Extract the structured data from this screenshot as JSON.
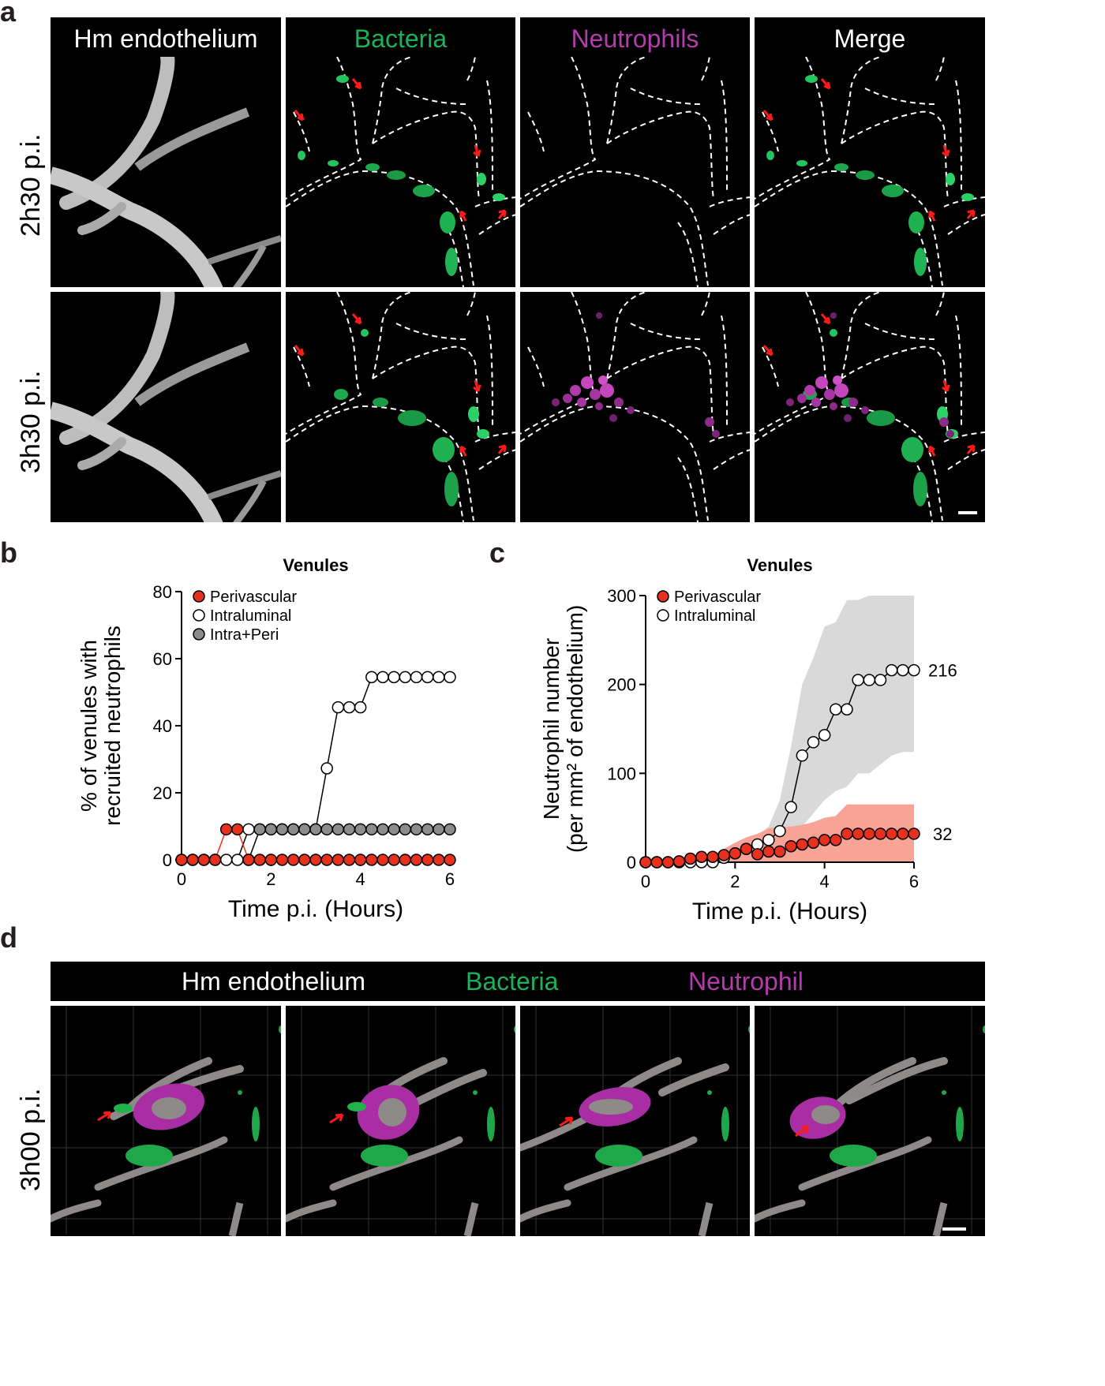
{
  "panels": {
    "a": "a",
    "b": "b",
    "c": "c",
    "d": "d"
  },
  "panel_a": {
    "columns": [
      "Hm endothelium",
      "Bacteria",
      "Neutrophils",
      "Merge"
    ],
    "rows": [
      "2h30 p.i.",
      "3h30 p.i."
    ]
  },
  "panel_d": {
    "header": {
      "endothelium": "Hm endothelium",
      "bacteria": "Bacteria",
      "neutrophil": "Neutrophil"
    },
    "row": "3h00 p.i."
  },
  "colors": {
    "bacteria": "#1bb25a",
    "neutrophil": "#b43cac",
    "perivascular": "#e8301f",
    "intra_peri": "#8c8c8c",
    "arrow": "#ff1a1a"
  },
  "chart_data": [
    {
      "panel": "b",
      "type": "line",
      "title": "Venules",
      "xlabel": "Time p.i. (Hours)",
      "ylabel": [
        "% of venules with",
        "recruited neutrophils"
      ],
      "xlim": [
        0,
        6
      ],
      "ylim": [
        0,
        80
      ],
      "xticks": [
        "0",
        "2",
        "4",
        "6"
      ],
      "yticks": [
        "0",
        "20",
        "40",
        "60",
        "80"
      ],
      "legend": [
        "Perivascular",
        "Intraluminal",
        "Intra+Peri"
      ],
      "series": [
        {
          "name": "Intraluminal",
          "x": [
            0,
            0.25,
            0.5,
            0.75,
            1,
            1.25,
            1.5,
            1.75,
            2,
            2.25,
            2.5,
            2.75,
            3,
            3.25,
            3.5,
            3.75,
            4,
            4.25,
            4.5,
            4.75,
            5,
            5.25,
            5.5,
            5.75,
            6
          ],
          "y": [
            0,
            0,
            0,
            0,
            0,
            0,
            9.1,
            9.1,
            9.1,
            9.1,
            9.1,
            9.1,
            9.1,
            27.3,
            45.5,
            45.5,
            45.5,
            54.5,
            54.5,
            54.5,
            54.5,
            54.5,
            54.5,
            54.5,
            54.5
          ]
        },
        {
          "name": "Intra+Peri",
          "x": [
            1.5,
            1.75,
            2,
            2.25,
            2.5,
            2.75,
            3,
            3.25,
            3.5,
            3.75,
            4,
            4.25,
            4.5,
            4.75,
            5,
            5.25,
            5.5,
            5.75,
            6
          ],
          "y": [
            0,
            9.1,
            9.1,
            9.1,
            9.1,
            9.1,
            9.1,
            9.1,
            9.1,
            9.1,
            9.1,
            9.1,
            9.1,
            9.1,
            9.1,
            9.1,
            9.1,
            9.1,
            9.1
          ]
        },
        {
          "name": "Perivascular",
          "x": [
            0,
            0.25,
            0.5,
            0.75,
            1,
            1.25,
            1.5,
            1.75,
            2,
            2.25,
            2.5,
            2.75,
            3,
            3.25,
            3.5,
            3.75,
            4,
            4.25,
            4.5,
            4.75,
            5,
            5.25,
            5.5,
            5.75,
            6
          ],
          "y": [
            0,
            0,
            0,
            0,
            9.1,
            9.1,
            0,
            0,
            0,
            0,
            0,
            0,
            0,
            0,
            0,
            0,
            0,
            0,
            0,
            0,
            0,
            0,
            0,
            0,
            0
          ]
        }
      ]
    },
    {
      "panel": "c",
      "type": "line",
      "title": "Venules",
      "xlabel": "Time p.i. (Hours)",
      "ylabel": [
        "Neutrophil number",
        "(per mm² of endothelium)"
      ],
      "xlim": [
        0,
        6
      ],
      "ylim": [
        0,
        300
      ],
      "xticks": [
        "0",
        "2",
        "4",
        "6"
      ],
      "yticks": [
        "0",
        "100",
        "200",
        "300"
      ],
      "legend": [
        "Perivascular",
        "Intraluminal"
      ],
      "end_labels": {
        "intraluminal": "216",
        "perivascular": "32"
      },
      "series": [
        {
          "name": "Intraluminal",
          "x": [
            0,
            0.25,
            0.5,
            0.75,
            1,
            1.25,
            1.5,
            1.75,
            2,
            2.25,
            2.5,
            2.75,
            3,
            3.25,
            3.5,
            3.75,
            4,
            4.25,
            4.5,
            4.75,
            5,
            5.25,
            5.5,
            5.75,
            6
          ],
          "y": [
            0,
            0,
            0,
            0,
            0,
            0,
            0,
            5,
            10,
            15,
            20,
            25,
            35,
            62,
            120,
            135,
            143,
            172,
            172,
            205,
            205,
            205,
            216,
            216,
            216
          ],
          "band_upper": [
            0,
            0,
            0,
            0,
            0,
            0,
            0,
            5,
            15,
            25,
            30,
            40,
            70,
            130,
            200,
            230,
            265,
            270,
            295,
            295,
            300,
            300,
            300,
            300,
            300
          ],
          "band_lower": [
            0,
            0,
            0,
            0,
            0,
            0,
            0,
            3,
            8,
            10,
            10,
            15,
            20,
            30,
            40,
            55,
            70,
            80,
            85,
            100,
            100,
            110,
            120,
            124,
            124
          ]
        },
        {
          "name": "Perivascular",
          "x": [
            0,
            0.25,
            0.5,
            0.75,
            1,
            1.25,
            1.5,
            1.75,
            2,
            2.25,
            2.5,
            2.75,
            3,
            3.25,
            3.5,
            3.75,
            4,
            4.25,
            4.5,
            4.75,
            5,
            5.25,
            5.5,
            5.75,
            6
          ],
          "y": [
            0,
            0,
            0,
            1,
            4,
            6,
            6,
            8,
            10,
            15,
            9,
            12,
            12,
            18,
            20,
            22,
            25,
            25,
            32,
            32,
            32,
            32,
            32,
            32,
            32
          ],
          "band_upper": [
            0,
            0,
            0,
            2,
            6,
            8,
            8,
            15,
            22,
            28,
            32,
            38,
            40,
            40,
            42,
            45,
            50,
            52,
            65,
            65,
            65,
            65,
            65,
            65,
            65
          ],
          "band_lower": [
            0,
            0,
            0,
            0,
            0,
            0,
            0,
            0,
            0,
            0,
            0,
            0,
            0,
            0,
            0,
            0,
            0,
            0,
            0,
            0,
            0,
            0,
            0,
            0,
            0
          ]
        }
      ]
    }
  ]
}
